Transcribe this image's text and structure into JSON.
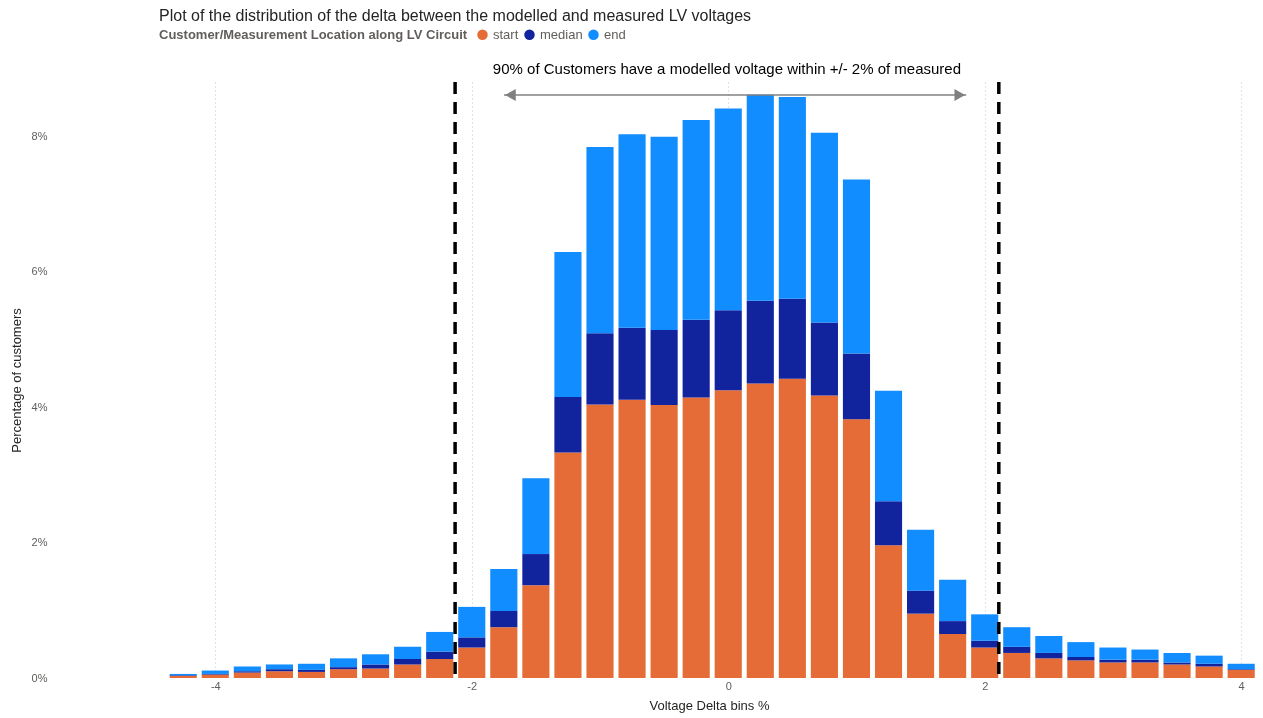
{
  "chart_data": {
    "type": "bar",
    "title": "Plot of the distribution of the delta between the modelled and measured LV voltages",
    "xlabel": "Voltage Delta bins %",
    "ylabel": "Percentage of customers",
    "legend_title": "Customer/Measurement Location along LV Circuit",
    "legend": "top left",
    "stacked": true,
    "grid": "x",
    "x": [
      -4.25,
      -4,
      -3.75,
      -3.5,
      -3.25,
      -3,
      -2.75,
      -2.5,
      -2.25,
      -2,
      -1.75,
      -1.5,
      -1.25,
      -1,
      -0.75,
      -0.5,
      -0.25,
      0,
      0.25,
      0.5,
      0.75,
      1,
      1.25,
      1.5,
      1.75,
      2,
      2.25,
      2.5,
      2.75,
      3,
      3.25,
      3.5,
      3.75,
      4
    ],
    "xlim": [
      -4.4,
      4.1
    ],
    "xticks": [
      -4,
      -2,
      0,
      2,
      4
    ],
    "ylim": [
      0,
      8.8
    ],
    "yticks": [
      {
        "value": 0,
        "label": "0%"
      },
      {
        "value": 2,
        "label": "2%"
      },
      {
        "value": 4,
        "label": "4%"
      },
      {
        "value": 6,
        "label": "6%"
      },
      {
        "value": 8,
        "label": "8%"
      }
    ],
    "series": [
      {
        "name": "start",
        "color": "#e66c37",
        "values": [
          0.03,
          0.05,
          0.08,
          0.1,
          0.09,
          0.13,
          0.14,
          0.2,
          0.28,
          0.45,
          0.75,
          1.37,
          3.33,
          4.04,
          4.11,
          4.03,
          4.14,
          4.25,
          4.35,
          4.42,
          4.17,
          3.82,
          1.96,
          0.95,
          0.65,
          0.45,
          0.37,
          0.29,
          0.26,
          0.23,
          0.23,
          0.2,
          0.17,
          0.12
        ]
      },
      {
        "name": "median",
        "color": "#12239e",
        "values": [
          0.01,
          0.01,
          0.02,
          0.03,
          0.03,
          0.03,
          0.06,
          0.08,
          0.11,
          0.15,
          0.24,
          0.46,
          0.82,
          1.05,
          1.06,
          1.11,
          1.15,
          1.18,
          1.22,
          1.18,
          1.08,
          0.97,
          0.65,
          0.34,
          0.19,
          0.1,
          0.09,
          0.08,
          0.05,
          0.04,
          0.04,
          0.03,
          0.04,
          0.01
        ]
      },
      {
        "name": "end",
        "color": "#118dff",
        "values": [
          0.02,
          0.05,
          0.07,
          0.07,
          0.09,
          0.13,
          0.15,
          0.18,
          0.29,
          0.45,
          0.62,
          1.12,
          2.14,
          2.75,
          2.86,
          2.85,
          2.95,
          2.98,
          3.04,
          2.98,
          2.8,
          2.57,
          1.63,
          0.9,
          0.61,
          0.39,
          0.29,
          0.25,
          0.22,
          0.18,
          0.15,
          0.14,
          0.12,
          0.08
        ]
      }
    ],
    "ref_lines": [
      {
        "axis": "x",
        "value": -2.13,
        "color": "#000000",
        "line_style": "dashed"
      },
      {
        "axis": "x",
        "value": 2.11,
        "color": "#000000",
        "line_style": "dashed"
      }
    ],
    "annotations": [
      "90% of Customers have a modelled voltage within +/- 2% of measured"
    ]
  }
}
